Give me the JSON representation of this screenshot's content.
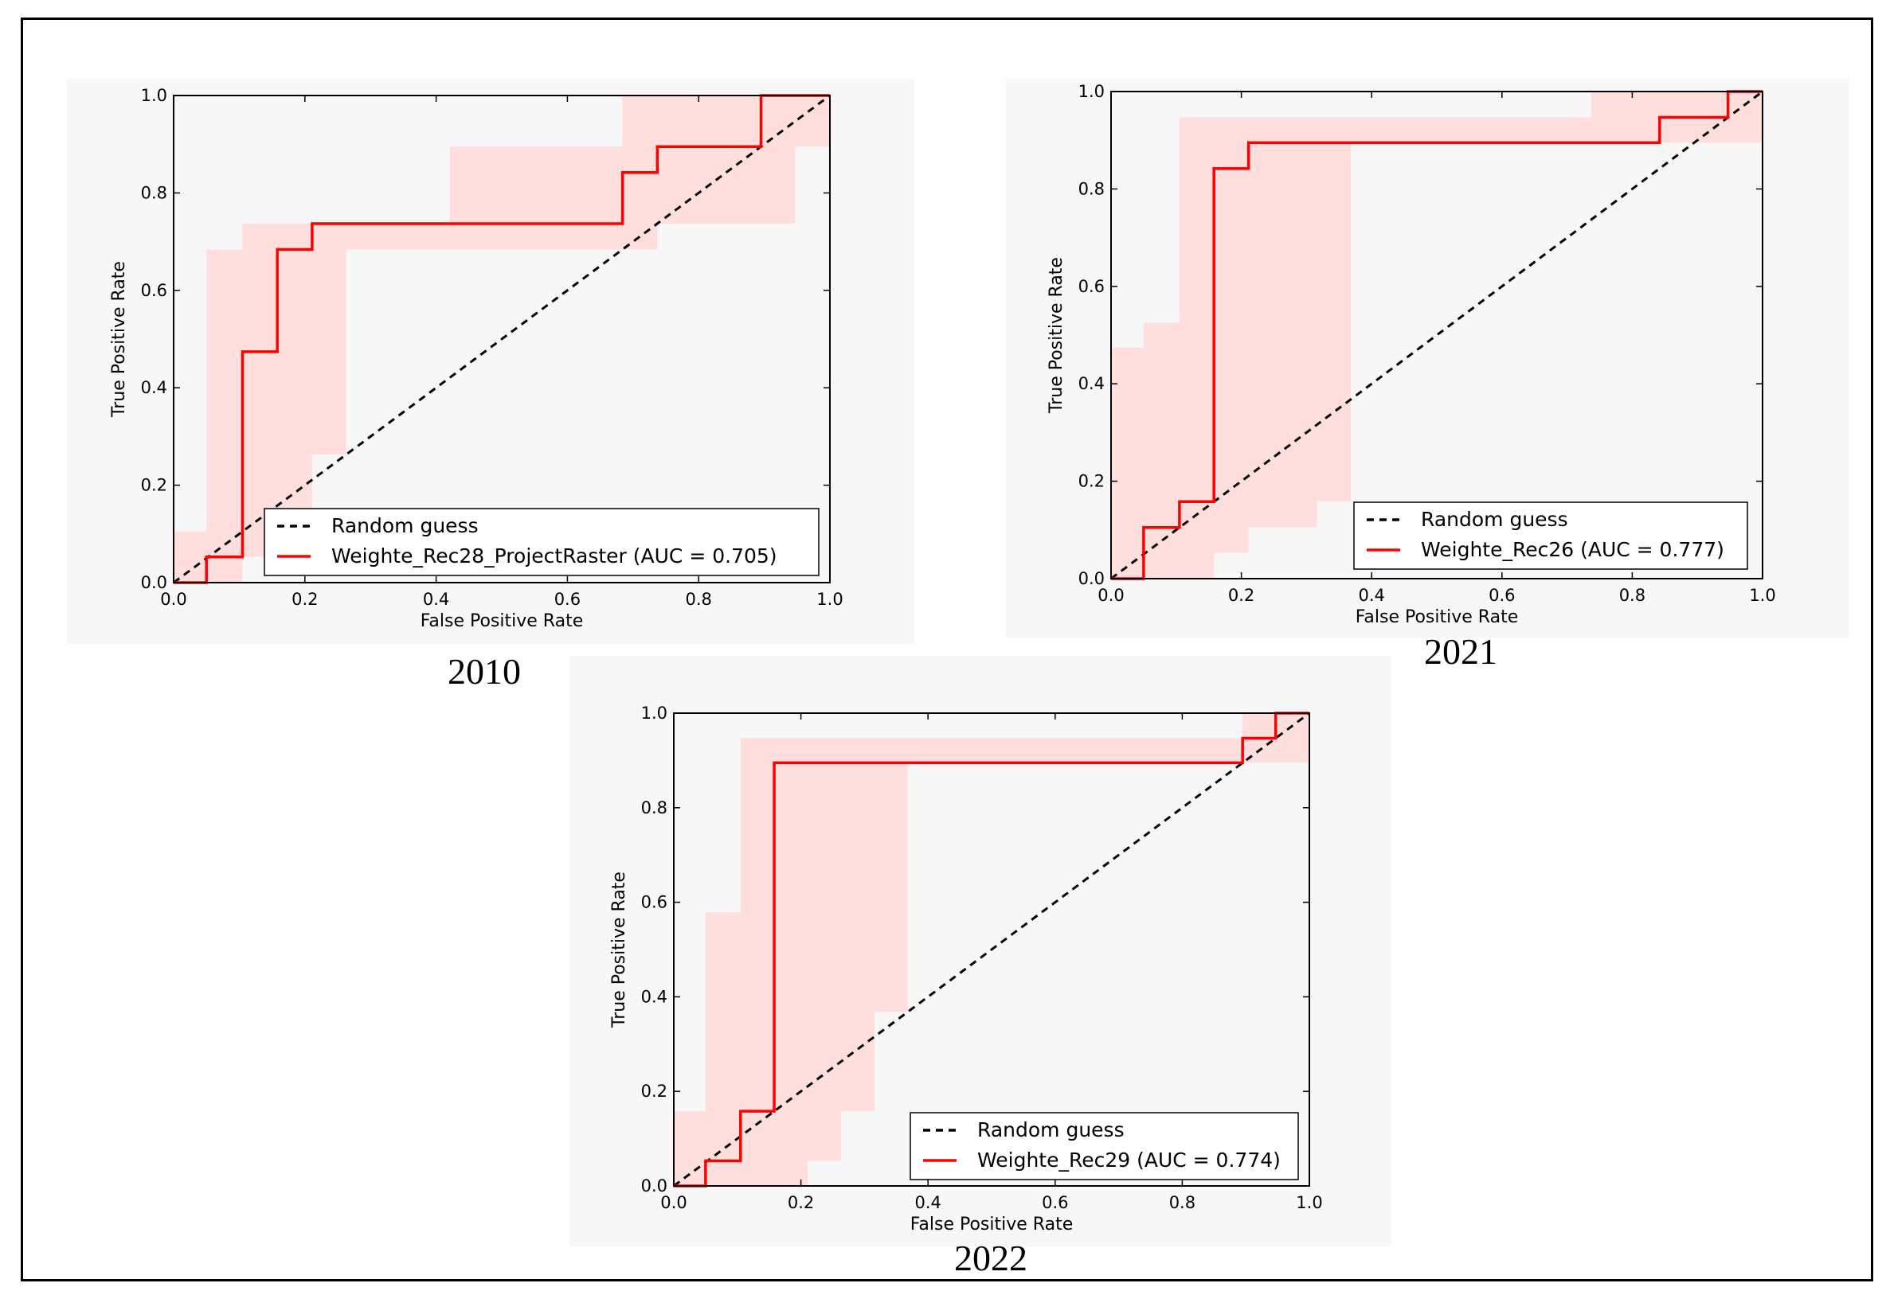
{
  "chart_data": [
    {
      "type": "line",
      "caption": "2010",
      "xlabel": "False Positive Rate",
      "ylabel": "True Positive Rate",
      "xlim": [
        0,
        1
      ],
      "ylim": [
        0,
        1
      ],
      "xticks": [
        "0.0",
        "0.2",
        "0.4",
        "0.6",
        "0.8",
        "1.0"
      ],
      "yticks": [
        "0.0",
        "0.2",
        "0.4",
        "0.6",
        "0.8",
        "1.0"
      ],
      "legend_position": "lower-right",
      "series": [
        {
          "name": "Random guess",
          "style": "dashed",
          "color": "#000000",
          "points": [
            [
              0,
              0
            ],
            [
              1,
              1
            ]
          ]
        },
        {
          "name": "Weighte_Rec28_ProjectRaster (AUC = 0.705)",
          "style": "solid",
          "color": "#ff0000",
          "points": [
            [
              0,
              0
            ],
            [
              0.05,
              0
            ],
            [
              0.05,
              0.053
            ],
            [
              0.105,
              0.053
            ],
            [
              0.105,
              0.474
            ],
            [
              0.158,
              0.474
            ],
            [
              0.158,
              0.684
            ],
            [
              0.211,
              0.684
            ],
            [
              0.211,
              0.737
            ],
            [
              0.684,
              0.737
            ],
            [
              0.684,
              0.842
            ],
            [
              0.737,
              0.842
            ],
            [
              0.737,
              0.895
            ],
            [
              0.895,
              0.895
            ],
            [
              0.895,
              1.0
            ],
            [
              1.0,
              1.0
            ]
          ]
        }
      ],
      "confidence_band": {
        "color": "#ffdede",
        "upper": [
          [
            0,
            0.105
          ],
          [
            0.05,
            0.105
          ],
          [
            0.05,
            0.684
          ],
          [
            0.105,
            0.684
          ],
          [
            0.105,
            0.737
          ],
          [
            0.421,
            0.737
          ],
          [
            0.421,
            0.895
          ],
          [
            0.684,
            0.895
          ],
          [
            0.684,
            1.0
          ],
          [
            1.0,
            1.0
          ]
        ],
        "lower": [
          [
            1.0,
            0.895
          ],
          [
            0.947,
            0.895
          ],
          [
            0.947,
            0.737
          ],
          [
            0.737,
            0.737
          ],
          [
            0.737,
            0.684
          ],
          [
            0.263,
            0.684
          ],
          [
            0.263,
            0.263
          ],
          [
            0.211,
            0.263
          ],
          [
            0.211,
            0.053
          ],
          [
            0.105,
            0.053
          ],
          [
            0.105,
            0
          ],
          [
            0,
            0
          ]
        ]
      }
    },
    {
      "type": "line",
      "caption": "2021",
      "xlabel": "False Positive Rate",
      "ylabel": "True Positive Rate",
      "xlim": [
        0,
        1
      ],
      "ylim": [
        0,
        1
      ],
      "xticks": [
        "0.0",
        "0.2",
        "0.4",
        "0.6",
        "0.8",
        "1.0"
      ],
      "yticks": [
        "0.0",
        "0.2",
        "0.4",
        "0.6",
        "0.8",
        "1.0"
      ],
      "legend_position": "lower-right",
      "series": [
        {
          "name": "Random guess",
          "style": "dashed",
          "color": "#000000",
          "points": [
            [
              0,
              0
            ],
            [
              1,
              1
            ]
          ]
        },
        {
          "name": "Weighte_Rec26 (AUC = 0.777)",
          "style": "solid",
          "color": "#ff0000",
          "points": [
            [
              0,
              0
            ],
            [
              0.05,
              0
            ],
            [
              0.05,
              0.105
            ],
            [
              0.105,
              0.105
            ],
            [
              0.105,
              0.158
            ],
            [
              0.158,
              0.158
            ],
            [
              0.158,
              0.842
            ],
            [
              0.211,
              0.842
            ],
            [
              0.211,
              0.895
            ],
            [
              0.842,
              0.895
            ],
            [
              0.842,
              0.947
            ],
            [
              0.947,
              0.947
            ],
            [
              0.947,
              1.0
            ],
            [
              1.0,
              1.0
            ]
          ]
        }
      ],
      "confidence_band": {
        "color": "#ffdede",
        "upper": [
          [
            0,
            0.474
          ],
          [
            0.05,
            0.474
          ],
          [
            0.05,
            0.526
          ],
          [
            0.105,
            0.526
          ],
          [
            0.105,
            0.947
          ],
          [
            0.737,
            0.947
          ],
          [
            0.737,
            1.0
          ],
          [
            1.0,
            1.0
          ]
        ],
        "lower": [
          [
            1.0,
            0.895
          ],
          [
            0.368,
            0.895
          ],
          [
            0.368,
            0.158
          ],
          [
            0.316,
            0.158
          ],
          [
            0.316,
            0.105
          ],
          [
            0.211,
            0.105
          ],
          [
            0.211,
            0.053
          ],
          [
            0.158,
            0.053
          ],
          [
            0.158,
            0
          ],
          [
            0,
            0
          ]
        ]
      }
    },
    {
      "type": "line",
      "caption": "2022",
      "xlabel": "False Positive Rate",
      "ylabel": "True Positive Rate",
      "xlim": [
        0,
        1
      ],
      "ylim": [
        0,
        1
      ],
      "xticks": [
        "0.0",
        "0.2",
        "0.4",
        "0.6",
        "0.8",
        "1.0"
      ],
      "yticks": [
        "0.0",
        "0.2",
        "0.4",
        "0.6",
        "0.8",
        "1.0"
      ],
      "legend_position": "lower-right",
      "series": [
        {
          "name": "Random guess",
          "style": "dashed",
          "color": "#000000",
          "points": [
            [
              0,
              0
            ],
            [
              1,
              1
            ]
          ]
        },
        {
          "name": "Weighte_Rec29 (AUC = 0.774)",
          "style": "solid",
          "color": "#ff0000",
          "points": [
            [
              0,
              0
            ],
            [
              0.05,
              0
            ],
            [
              0.05,
              0.053
            ],
            [
              0.105,
              0.053
            ],
            [
              0.105,
              0.158
            ],
            [
              0.158,
              0.158
            ],
            [
              0.158,
              0.895
            ],
            [
              0.895,
              0.895
            ],
            [
              0.895,
              0.947
            ],
            [
              0.947,
              0.947
            ],
            [
              0.947,
              1.0
            ],
            [
              1.0,
              1.0
            ]
          ]
        }
      ],
      "confidence_band": {
        "color": "#ffdede",
        "upper": [
          [
            0,
            0.158
          ],
          [
            0.05,
            0.158
          ],
          [
            0.05,
            0.579
          ],
          [
            0.105,
            0.579
          ],
          [
            0.105,
            0.947
          ],
          [
            0.895,
            0.947
          ],
          [
            0.895,
            1.0
          ],
          [
            1.0,
            1.0
          ]
        ],
        "lower": [
          [
            1.0,
            0.895
          ],
          [
            0.368,
            0.895
          ],
          [
            0.368,
            0.368
          ],
          [
            0.316,
            0.368
          ],
          [
            0.316,
            0.158
          ],
          [
            0.263,
            0.158
          ],
          [
            0.263,
            0.053
          ],
          [
            0.211,
            0.053
          ],
          [
            0.211,
            0
          ],
          [
            0,
            0
          ]
        ]
      }
    }
  ]
}
